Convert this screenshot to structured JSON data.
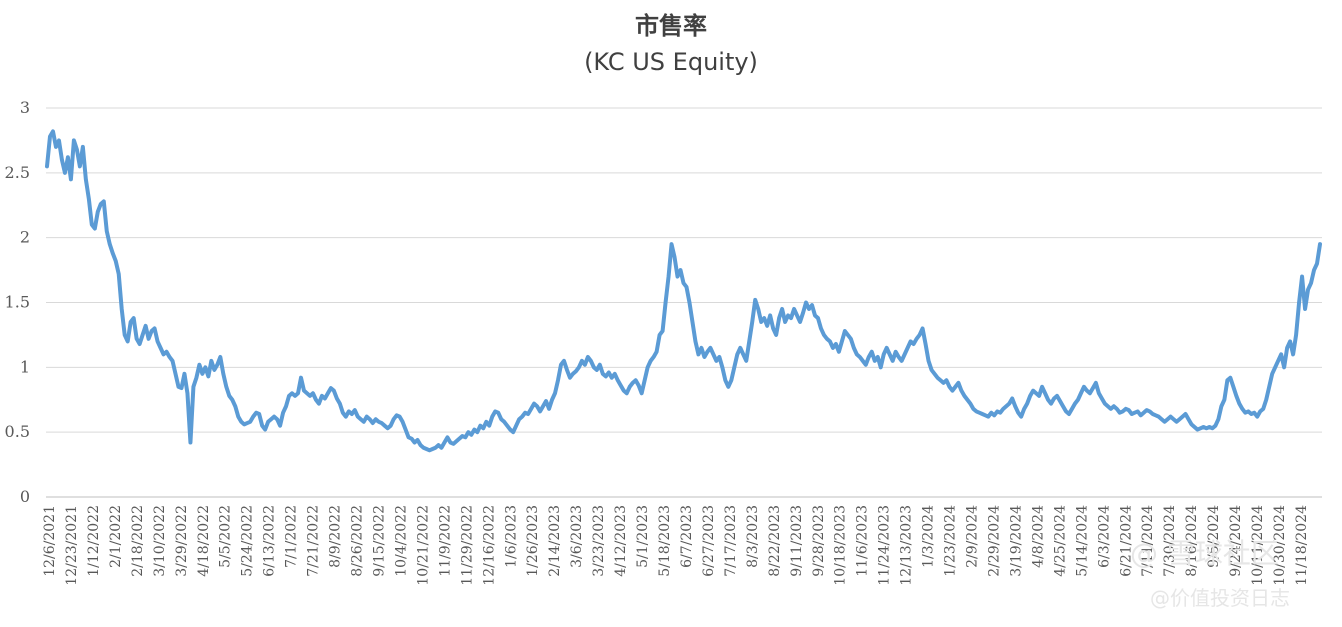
{
  "chart_data": {
    "type": "line",
    "title": "市售率",
    "subtitle": "(KC US Equity)",
    "xlabel": "",
    "ylabel": "",
    "ylim": [
      0,
      3
    ],
    "yticks": [
      "0",
      "0.5",
      "1",
      "1.5",
      "2",
      "2.5",
      "3"
    ],
    "grid": true,
    "legend": "none",
    "line_color": "#5b9bd5",
    "x_tick_labels": [
      "12/6/2021",
      "12/23/2021",
      "1/12/2022",
      "2/1/2022",
      "2/18/2022",
      "3/10/2022",
      "3/29/2022",
      "4/18/2022",
      "5/5/2022",
      "5/24/2022",
      "6/13/2022",
      "7/1/2022",
      "7/21/2022",
      "8/9/2022",
      "8/26/2022",
      "9/15/2022",
      "10/4/2022",
      "10/21/2022",
      "11/9/2022",
      "11/29/2022",
      "12/16/2022",
      "1/6/2023",
      "1/26/2023",
      "2/14/2023",
      "3/6/2023",
      "3/23/2023",
      "4/12/2023",
      "5/1/2023",
      "5/18/2023",
      "6/7/2023",
      "6/27/2023",
      "7/17/2023",
      "8/3/2023",
      "8/22/2023",
      "9/11/2023",
      "9/28/2023",
      "10/18/2023",
      "11/6/2023",
      "11/24/2023",
      "12/13/2023",
      "1/3/2024",
      "1/23/2024",
      "2/9/2024",
      "2/29/2024",
      "3/19/2024",
      "4/8/2024",
      "4/25/2024",
      "5/14/2024",
      "6/3/2024",
      "6/21/2024",
      "7/11/2024",
      "7/30/2024",
      "8/16/2024",
      "9/5/2024",
      "9/24/2024",
      "10/11/2024",
      "10/30/2024",
      "11/18/2024"
    ],
    "series": [
      {
        "values": [
          2.55,
          2.78,
          2.82,
          2.7,
          2.75,
          2.6,
          2.5,
          2.62,
          2.45,
          2.75,
          2.68,
          2.55,
          2.7,
          2.45,
          2.3,
          2.1,
          2.07,
          2.2,
          2.26,
          2.28,
          2.05,
          1.95,
          1.88,
          1.82,
          1.72,
          1.45,
          1.25,
          1.2,
          1.35,
          1.38,
          1.22,
          1.18,
          1.25,
          1.32,
          1.22,
          1.28,
          1.3,
          1.2,
          1.15,
          1.1,
          1.12,
          1.08,
          1.05,
          0.95,
          0.85,
          0.84,
          0.95,
          0.8,
          0.42,
          0.85,
          0.92,
          1.02,
          0.95,
          1.0,
          0.93,
          1.05,
          0.98,
          1.02,
          1.08,
          0.95,
          0.85,
          0.78,
          0.75,
          0.7,
          0.62,
          0.58,
          0.56,
          0.57,
          0.58,
          0.62,
          0.65,
          0.64,
          0.55,
          0.52,
          0.58,
          0.6,
          0.62,
          0.6,
          0.55,
          0.65,
          0.7,
          0.78,
          0.8,
          0.78,
          0.8,
          0.92,
          0.82,
          0.8,
          0.78,
          0.8,
          0.75,
          0.72,
          0.78,
          0.76,
          0.8,
          0.84,
          0.82,
          0.76,
          0.72,
          0.65,
          0.62,
          0.66,
          0.64,
          0.67,
          0.62,
          0.6,
          0.58,
          0.62,
          0.6,
          0.57,
          0.6,
          0.58,
          0.57,
          0.55,
          0.53,
          0.55,
          0.6,
          0.63,
          0.62,
          0.58,
          0.52,
          0.46,
          0.45,
          0.42,
          0.44,
          0.4,
          0.38,
          0.37,
          0.36,
          0.37,
          0.38,
          0.4,
          0.38,
          0.42,
          0.46,
          0.42,
          0.41,
          0.43,
          0.45,
          0.47,
          0.46,
          0.5,
          0.48,
          0.52,
          0.5,
          0.55,
          0.53,
          0.58,
          0.55,
          0.62,
          0.66,
          0.65,
          0.6,
          0.58,
          0.55,
          0.52,
          0.5,
          0.55,
          0.6,
          0.62,
          0.65,
          0.64,
          0.68,
          0.72,
          0.7,
          0.66,
          0.7,
          0.74,
          0.68,
          0.75,
          0.8,
          0.9,
          1.02,
          1.05,
          0.98,
          0.92,
          0.95,
          0.97,
          1.0,
          1.05,
          1.02,
          1.08,
          1.05,
          1.0,
          0.98,
          1.02,
          0.95,
          0.93,
          0.96,
          0.92,
          0.95,
          0.9,
          0.86,
          0.82,
          0.8,
          0.85,
          0.88,
          0.9,
          0.86,
          0.8,
          0.9,
          1.0,
          1.05,
          1.08,
          1.12,
          1.25,
          1.28,
          1.5,
          1.7,
          1.95,
          1.85,
          1.7,
          1.75,
          1.65,
          1.62,
          1.5,
          1.35,
          1.2,
          1.1,
          1.15,
          1.08,
          1.12,
          1.15,
          1.1,
          1.05,
          1.08,
          1.0,
          0.9,
          0.85,
          0.9,
          1.0,
          1.1,
          1.15,
          1.1,
          1.05,
          1.2,
          1.35,
          1.52,
          1.45,
          1.35,
          1.38,
          1.32,
          1.4,
          1.3,
          1.25,
          1.38,
          1.45,
          1.35,
          1.4,
          1.38,
          1.45,
          1.4,
          1.35,
          1.42,
          1.5,
          1.45,
          1.48,
          1.4,
          1.38,
          1.3,
          1.25,
          1.22,
          1.2,
          1.15,
          1.18,
          1.12,
          1.2,
          1.28,
          1.25,
          1.22,
          1.15,
          1.1,
          1.08,
          1.05,
          1.02,
          1.08,
          1.12,
          1.05,
          1.08,
          1.0,
          1.1,
          1.15,
          1.1,
          1.05,
          1.12,
          1.08,
          1.05,
          1.1,
          1.15,
          1.2,
          1.18,
          1.22,
          1.25,
          1.3,
          1.18,
          1.05,
          0.98,
          0.95,
          0.92,
          0.9,
          0.88,
          0.9,
          0.85,
          0.82,
          0.85,
          0.88,
          0.82,
          0.78,
          0.75,
          0.72,
          0.68,
          0.66,
          0.65,
          0.64,
          0.63,
          0.62,
          0.65,
          0.63,
          0.66,
          0.65,
          0.68,
          0.7,
          0.72,
          0.76,
          0.7,
          0.65,
          0.62,
          0.68,
          0.72,
          0.78,
          0.82,
          0.8,
          0.78,
          0.85,
          0.8,
          0.75,
          0.72,
          0.76,
          0.78,
          0.74,
          0.7,
          0.66,
          0.64,
          0.68,
          0.72,
          0.75,
          0.8,
          0.85,
          0.82,
          0.8,
          0.84,
          0.88,
          0.8,
          0.76,
          0.72,
          0.7,
          0.68,
          0.7,
          0.68,
          0.65,
          0.66,
          0.68,
          0.67,
          0.64,
          0.65,
          0.66,
          0.63,
          0.65,
          0.67,
          0.66,
          0.64,
          0.63,
          0.62,
          0.6,
          0.58,
          0.6,
          0.62,
          0.6,
          0.58,
          0.6,
          0.62,
          0.64,
          0.6,
          0.56,
          0.54,
          0.52,
          0.53,
          0.54,
          0.53,
          0.54,
          0.53,
          0.55,
          0.6,
          0.7,
          0.75,
          0.9,
          0.92,
          0.85,
          0.78,
          0.72,
          0.68,
          0.65,
          0.66,
          0.64,
          0.65,
          0.62,
          0.66,
          0.68,
          0.75,
          0.85,
          0.95,
          1.0,
          1.05,
          1.1,
          1.0,
          1.15,
          1.2,
          1.1,
          1.25,
          1.5,
          1.7,
          1.45,
          1.6,
          1.65,
          1.75,
          1.8,
          1.95
        ]
      }
    ]
  },
  "watermark": {
    "line1": "@ 雪球社区",
    "line2": "@价值投资日志"
  }
}
